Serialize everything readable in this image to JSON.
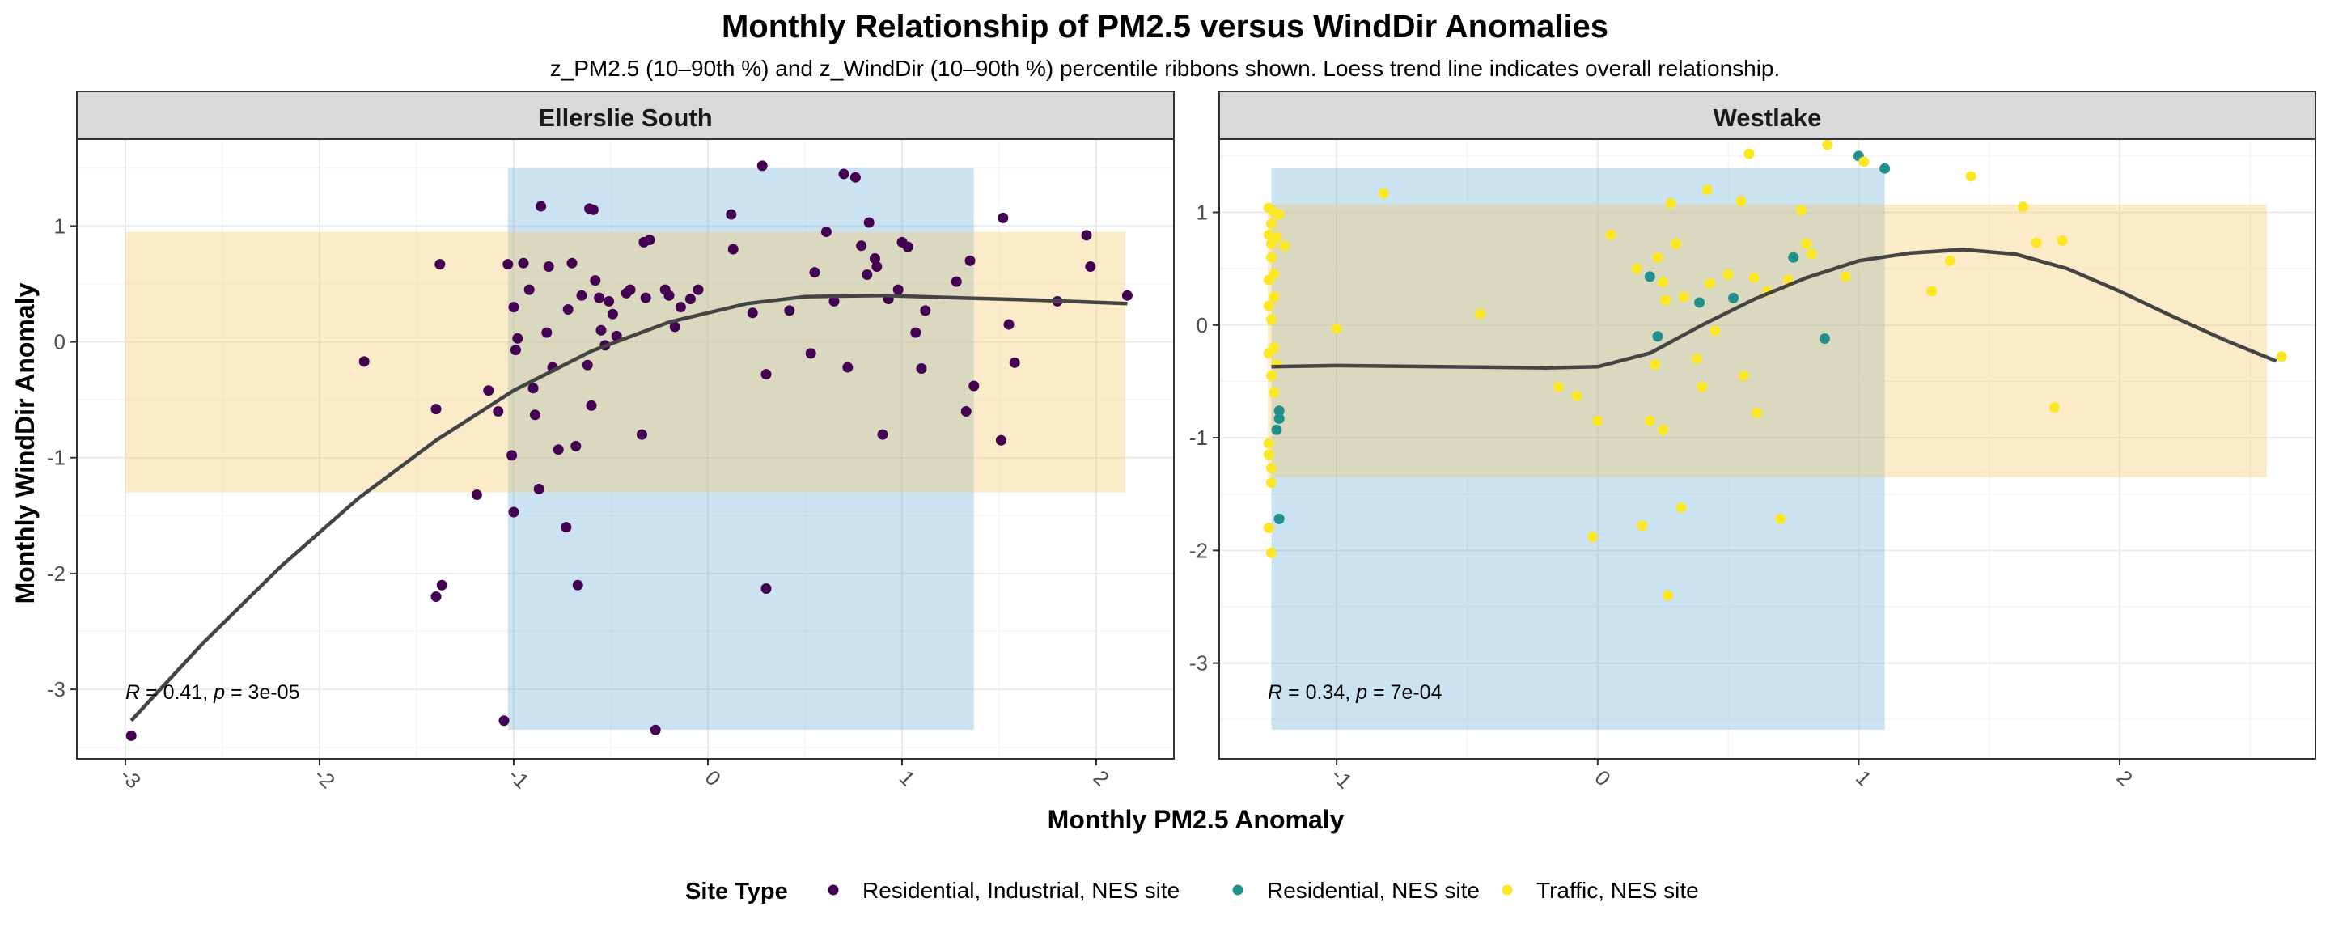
{
  "chart_data": {
    "type": "scatter",
    "title": "Monthly Relationship of PM2.5 versus WindDir Anomalies",
    "subtitle": "z_PM2.5 (10–90th %) and z_WindDir (10–90th %) percentile ribbons shown. Loess trend line indicates overall relationship.",
    "xlabel": "Monthly PM2.5 Anomaly",
    "ylabel": "Monthly WindDir Anomaly",
    "grid": true,
    "legend": {
      "title": "Site Type",
      "position": "bottom",
      "entries": [
        {
          "label": "Residential, Industrial, NES site",
          "color": "#440154"
        },
        {
          "label": "Residential, NES site",
          "color": "#21908C"
        },
        {
          "label": "Traffic, NES site",
          "color": "#FDE725"
        }
      ]
    },
    "colors": {
      "x_ribbon": "#6baed6",
      "y_ribbon": "#f5c565",
      "trend": "#444444"
    },
    "panels": [
      {
        "name": "Ellerslie South",
        "xlim": [
          -3.25,
          2.4
        ],
        "ylim": [
          -3.6,
          1.75
        ],
        "xticks": [
          -3,
          -2,
          -1,
          0,
          1,
          2
        ],
        "yticks": [
          -3,
          -2,
          -1,
          0,
          1
        ],
        "x_ribbon": [
          -1.03,
          1.37
        ],
        "y_ribbon": [
          -1.3,
          0.95
        ],
        "stat_r": "0.41",
        "stat_p": "3e-05",
        "trend": [
          [
            -2.97,
            -3.27
          ],
          [
            -2.6,
            -2.6
          ],
          [
            -2.2,
            -1.94
          ],
          [
            -1.8,
            -1.35
          ],
          [
            -1.4,
            -0.85
          ],
          [
            -1.0,
            -0.42
          ],
          [
            -0.6,
            -0.08
          ],
          [
            -0.2,
            0.17
          ],
          [
            0.2,
            0.33
          ],
          [
            0.5,
            0.39
          ],
          [
            0.9,
            0.4
          ],
          [
            1.3,
            0.38
          ],
          [
            1.7,
            0.36
          ],
          [
            2.16,
            0.33
          ]
        ],
        "points": {
          "Residential, Industrial, NES site": [
            [
              -2.97,
              -3.4
            ],
            [
              -1.77,
              -0.17
            ],
            [
              -1.4,
              -0.58
            ],
            [
              -1.38,
              0.67
            ],
            [
              -1.4,
              -2.2
            ],
            [
              -1.37,
              -2.1
            ],
            [
              -1.19,
              -1.32
            ],
            [
              -1.13,
              -0.42
            ],
            [
              -1.08,
              -0.6
            ],
            [
              -1.05,
              -3.27
            ],
            [
              -1.03,
              0.67
            ],
            [
              -1.0,
              0.3
            ],
            [
              -1.01,
              -0.98
            ],
            [
              -1.0,
              -1.47
            ],
            [
              -0.98,
              0.03
            ],
            [
              -0.99,
              -0.07
            ],
            [
              -0.95,
              0.68
            ],
            [
              -0.9,
              -0.4
            ],
            [
              -0.92,
              0.45
            ],
            [
              -0.89,
              -0.63
            ],
            [
              -0.87,
              -1.27
            ],
            [
              -0.86,
              1.17
            ],
            [
              -0.83,
              0.08
            ],
            [
              -0.82,
              0.65
            ],
            [
              -0.8,
              -0.22
            ],
            [
              -0.77,
              -0.93
            ],
            [
              -0.73,
              -1.6
            ],
            [
              -0.72,
              0.28
            ],
            [
              -0.7,
              0.68
            ],
            [
              -0.68,
              -0.9
            ],
            [
              -0.67,
              -2.1
            ],
            [
              -0.65,
              0.4
            ],
            [
              -0.62,
              -0.2
            ],
            [
              -0.61,
              1.15
            ],
            [
              -0.59,
              1.14
            ],
            [
              -0.6,
              -0.55
            ],
            [
              -0.58,
              0.53
            ],
            [
              -0.56,
              0.38
            ],
            [
              -0.55,
              0.1
            ],
            [
              -0.53,
              -0.03
            ],
            [
              -0.51,
              0.35
            ],
            [
              -0.49,
              0.24
            ],
            [
              -0.47,
              0.05
            ],
            [
              -0.42,
              0.42
            ],
            [
              -0.4,
              0.45
            ],
            [
              -0.33,
              0.86
            ],
            [
              -0.34,
              -0.8
            ],
            [
              -0.32,
              0.38
            ],
            [
              -0.3,
              0.88
            ],
            [
              -0.27,
              -3.35
            ],
            [
              -0.22,
              0.45
            ],
            [
              -0.2,
              0.4
            ],
            [
              -0.17,
              0.13
            ],
            [
              -0.14,
              0.3
            ],
            [
              -0.09,
              0.37
            ],
            [
              -0.05,
              0.45
            ],
            [
              0.12,
              1.1
            ],
            [
              0.13,
              0.8
            ],
            [
              0.23,
              0.25
            ],
            [
              0.28,
              1.52
            ],
            [
              0.3,
              -0.28
            ],
            [
              0.3,
              -2.13
            ],
            [
              0.42,
              0.27
            ],
            [
              0.55,
              0.6
            ],
            [
              0.53,
              -0.1
            ],
            [
              0.61,
              0.95
            ],
            [
              0.65,
              0.35
            ],
            [
              0.72,
              -0.22
            ],
            [
              0.7,
              1.45
            ],
            [
              0.76,
              1.42
            ],
            [
              0.79,
              0.83
            ],
            [
              0.82,
              0.58
            ],
            [
              0.83,
              1.03
            ],
            [
              0.86,
              0.72
            ],
            [
              0.87,
              0.65
            ],
            [
              0.9,
              -0.8
            ],
            [
              0.93,
              0.37
            ],
            [
              0.98,
              0.45
            ],
            [
              1.0,
              0.86
            ],
            [
              1.03,
              0.82
            ],
            [
              1.07,
              0.08
            ],
            [
              1.1,
              -0.23
            ],
            [
              1.12,
              0.27
            ],
            [
              1.28,
              0.52
            ],
            [
              1.33,
              -0.6
            ],
            [
              1.35,
              0.7
            ],
            [
              1.37,
              -0.38
            ],
            [
              1.51,
              -0.85
            ],
            [
              1.52,
              1.07
            ],
            [
              1.55,
              0.15
            ],
            [
              1.58,
              -0.18
            ],
            [
              1.8,
              0.35
            ],
            [
              1.95,
              0.92
            ],
            [
              1.97,
              0.65
            ],
            [
              2.16,
              0.4
            ]
          ]
        }
      },
      {
        "name": "Westlake",
        "xlim": [
          -1.45,
          2.75
        ],
        "ylim": [
          -3.85,
          1.65
        ],
        "xticks": [
          -1,
          0,
          1,
          2
        ],
        "yticks": [
          -3,
          -2,
          -1,
          0,
          1
        ],
        "x_ribbon": [
          -1.25,
          1.1
        ],
        "y_ribbon": [
          -1.35,
          1.07
        ],
        "stat_r": "0.34",
        "stat_p": "7e-04",
        "trend": [
          [
            -1.25,
            -0.37
          ],
          [
            -1.0,
            -0.36
          ],
          [
            -0.6,
            -0.37
          ],
          [
            -0.2,
            -0.38
          ],
          [
            0.0,
            -0.37
          ],
          [
            0.2,
            -0.25
          ],
          [
            0.4,
            0.0
          ],
          [
            0.6,
            0.23
          ],
          [
            0.8,
            0.42
          ],
          [
            1.0,
            0.57
          ],
          [
            1.2,
            0.64
          ],
          [
            1.4,
            0.67
          ],
          [
            1.6,
            0.63
          ],
          [
            1.8,
            0.5
          ],
          [
            2.0,
            0.3
          ],
          [
            2.2,
            0.08
          ],
          [
            2.4,
            -0.13
          ],
          [
            2.6,
            -0.32
          ]
        ],
        "points": {
          "Residential, Industrial, NES site": [],
          "Residential, NES site": [
            [
              -1.22,
              -0.76
            ],
            [
              -1.22,
              -0.83
            ],
            [
              -1.23,
              -0.93
            ],
            [
              -1.22,
              -1.72
            ],
            [
              0.2,
              0.43
            ],
            [
              0.23,
              -0.1
            ],
            [
              0.39,
              0.2
            ],
            [
              0.52,
              0.24
            ],
            [
              0.75,
              0.6
            ],
            [
              0.87,
              -0.12
            ],
            [
              1.0,
              1.5
            ],
            [
              1.1,
              1.39
            ]
          ],
          "Traffic, NES site": [
            [
              -1.26,
              1.04
            ],
            [
              -1.24,
              1.0
            ],
            [
              -1.22,
              0.98
            ],
            [
              -1.25,
              0.9
            ],
            [
              -1.26,
              0.8
            ],
            [
              -1.23,
              0.78
            ],
            [
              -1.25,
              0.72
            ],
            [
              -1.2,
              0.7
            ],
            [
              -1.25,
              0.6
            ],
            [
              -1.24,
              0.45
            ],
            [
              -1.26,
              0.4
            ],
            [
              -1.24,
              0.25
            ],
            [
              -1.26,
              0.17
            ],
            [
              -1.25,
              0.05
            ],
            [
              -1.24,
              -0.2
            ],
            [
              -1.26,
              -0.25
            ],
            [
              -1.23,
              -0.35
            ],
            [
              -1.25,
              -0.45
            ],
            [
              -1.24,
              -0.6
            ],
            [
              -1.26,
              -1.05
            ],
            [
              -1.26,
              -1.15
            ],
            [
              -1.25,
              -1.27
            ],
            [
              -1.25,
              -1.4
            ],
            [
              -1.26,
              -1.8
            ],
            [
              -1.25,
              -2.02
            ],
            [
              -1.0,
              -0.03
            ],
            [
              -0.82,
              1.17
            ],
            [
              -0.45,
              0.1
            ],
            [
              -0.15,
              -0.55
            ],
            [
              -0.08,
              -0.63
            ],
            [
              -0.02,
              -1.88
            ],
            [
              0.0,
              -0.85
            ],
            [
              0.05,
              0.8
            ],
            [
              0.15,
              0.5
            ],
            [
              0.17,
              -1.78
            ],
            [
              0.2,
              -0.85
            ],
            [
              0.22,
              -0.35
            ],
            [
              0.23,
              0.6
            ],
            [
              0.25,
              0.38
            ],
            [
              0.25,
              -0.93
            ],
            [
              0.26,
              0.22
            ],
            [
              0.27,
              -2.4
            ],
            [
              0.28,
              1.08
            ],
            [
              0.3,
              0.72
            ],
            [
              0.32,
              -1.62
            ],
            [
              0.33,
              0.25
            ],
            [
              0.38,
              -0.3
            ],
            [
              0.4,
              -0.55
            ],
            [
              0.42,
              1.2
            ],
            [
              0.43,
              0.37
            ],
            [
              0.45,
              -0.05
            ],
            [
              0.5,
              0.45
            ],
            [
              0.55,
              1.1
            ],
            [
              0.56,
              -0.45
            ],
            [
              0.58,
              1.52
            ],
            [
              0.6,
              0.42
            ],
            [
              0.61,
              -0.78
            ],
            [
              0.65,
              0.3
            ],
            [
              0.7,
              -1.72
            ],
            [
              0.73,
              0.4
            ],
            [
              0.78,
              1.02
            ],
            [
              0.8,
              0.72
            ],
            [
              0.82,
              0.63
            ],
            [
              0.88,
              1.6
            ],
            [
              0.95,
              0.43
            ],
            [
              1.02,
              1.45
            ],
            [
              1.28,
              0.3
            ],
            [
              1.35,
              0.57
            ],
            [
              1.43,
              1.32
            ],
            [
              1.63,
              1.05
            ],
            [
              1.68,
              0.73
            ],
            [
              1.75,
              -0.73
            ],
            [
              1.78,
              0.75
            ],
            [
              2.62,
              -0.28
            ]
          ]
        }
      }
    ]
  }
}
